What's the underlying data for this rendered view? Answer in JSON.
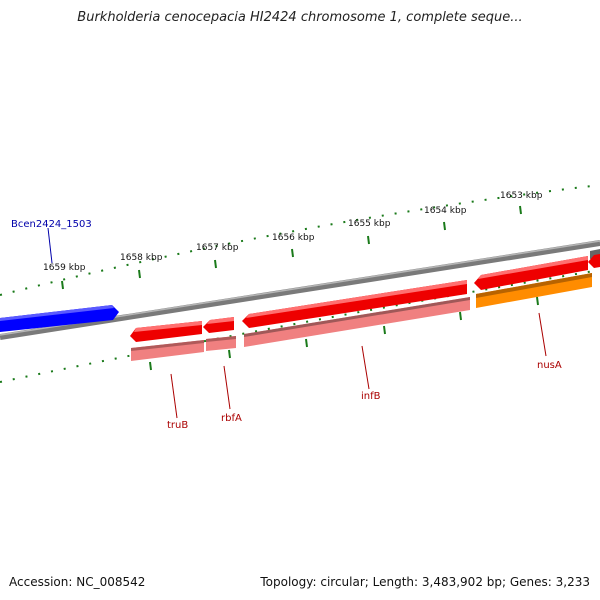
{
  "title": "Burkholderia cenocepacia HI2424 chromosome 1, complete seque...",
  "footer": {
    "accession": "Accession: NC_008542",
    "summary": "Topology: circular; Length: 3,483,902 bp; Genes: 3,233"
  },
  "colors": {
    "backbone": "#808080",
    "tick_minor": "#1a7a1a",
    "gene_forward": "#ff0000",
    "gene_product": "#f08080",
    "gene_highlight": "#ff8c00",
    "feature_blue": "#0000ff",
    "gene_label": "#aa0000",
    "feature_label": "#0000aa"
  },
  "scale_labels": [
    "1659 kbp",
    "1658 kbp",
    "1657 kbp",
    "1656 kbp",
    "1655 kbp",
    "1654 kbp",
    "1653 kbp"
  ],
  "gene_labels": [
    "truB",
    "rbfA",
    "infB",
    "nusA"
  ],
  "feature_labels": [
    "Bcen2424_1503"
  ]
}
